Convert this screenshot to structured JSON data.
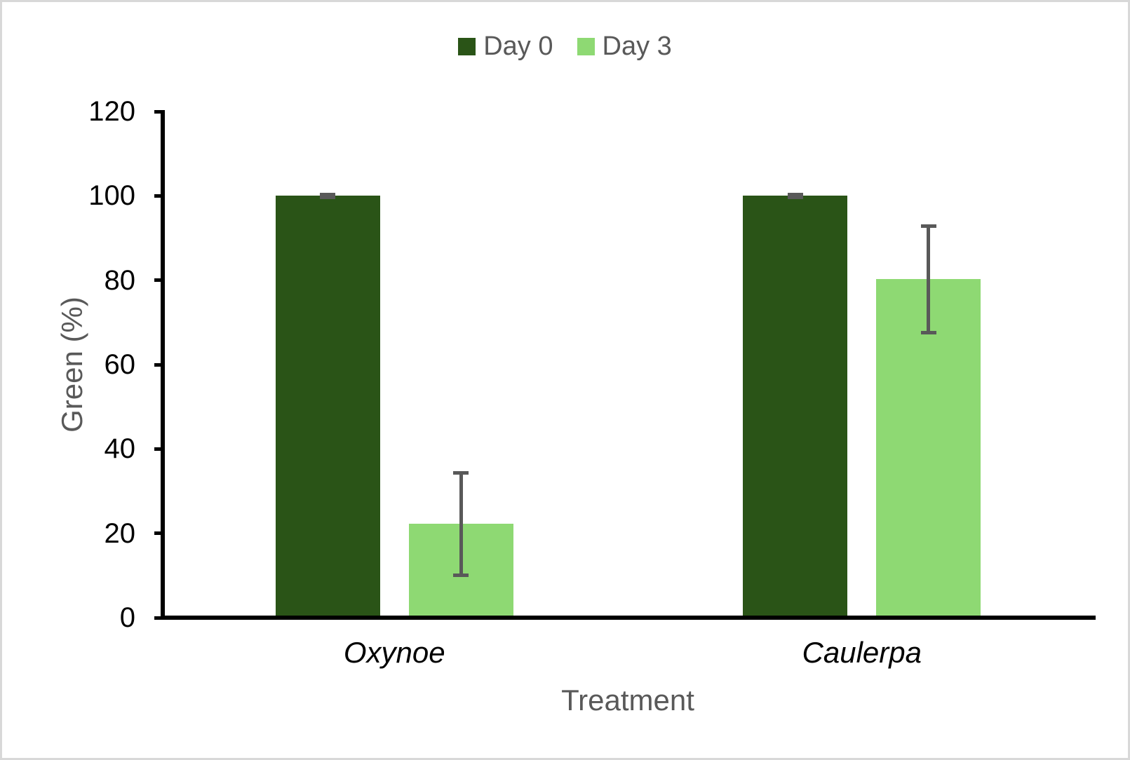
{
  "chart_data": {
    "type": "bar",
    "title": "",
    "categories": [
      "Oxynoe",
      "Caulerpa"
    ],
    "series": [
      {
        "name": "Day 0",
        "color": "#2A5417",
        "values": [
          100,
          100
        ],
        "errors": [
          0.3,
          0.3
        ]
      },
      {
        "name": "Day 3",
        "color": "#8ED973",
        "values": [
          22.2,
          80.2
        ],
        "errors": [
          12.1,
          12.6
        ]
      }
    ],
    "xlabel": "Treatment",
    "ylabel": "Green (%)",
    "ylim": [
      0,
      120
    ],
    "ytick_step": 20,
    "yticks": [
      0,
      20,
      40,
      60,
      80,
      100,
      120
    ],
    "legend_position": "top",
    "grid": false,
    "error_color": "#595959",
    "axis_color": "#000000",
    "label_text_color": "#595959",
    "tick_text_color": "#000000"
  }
}
